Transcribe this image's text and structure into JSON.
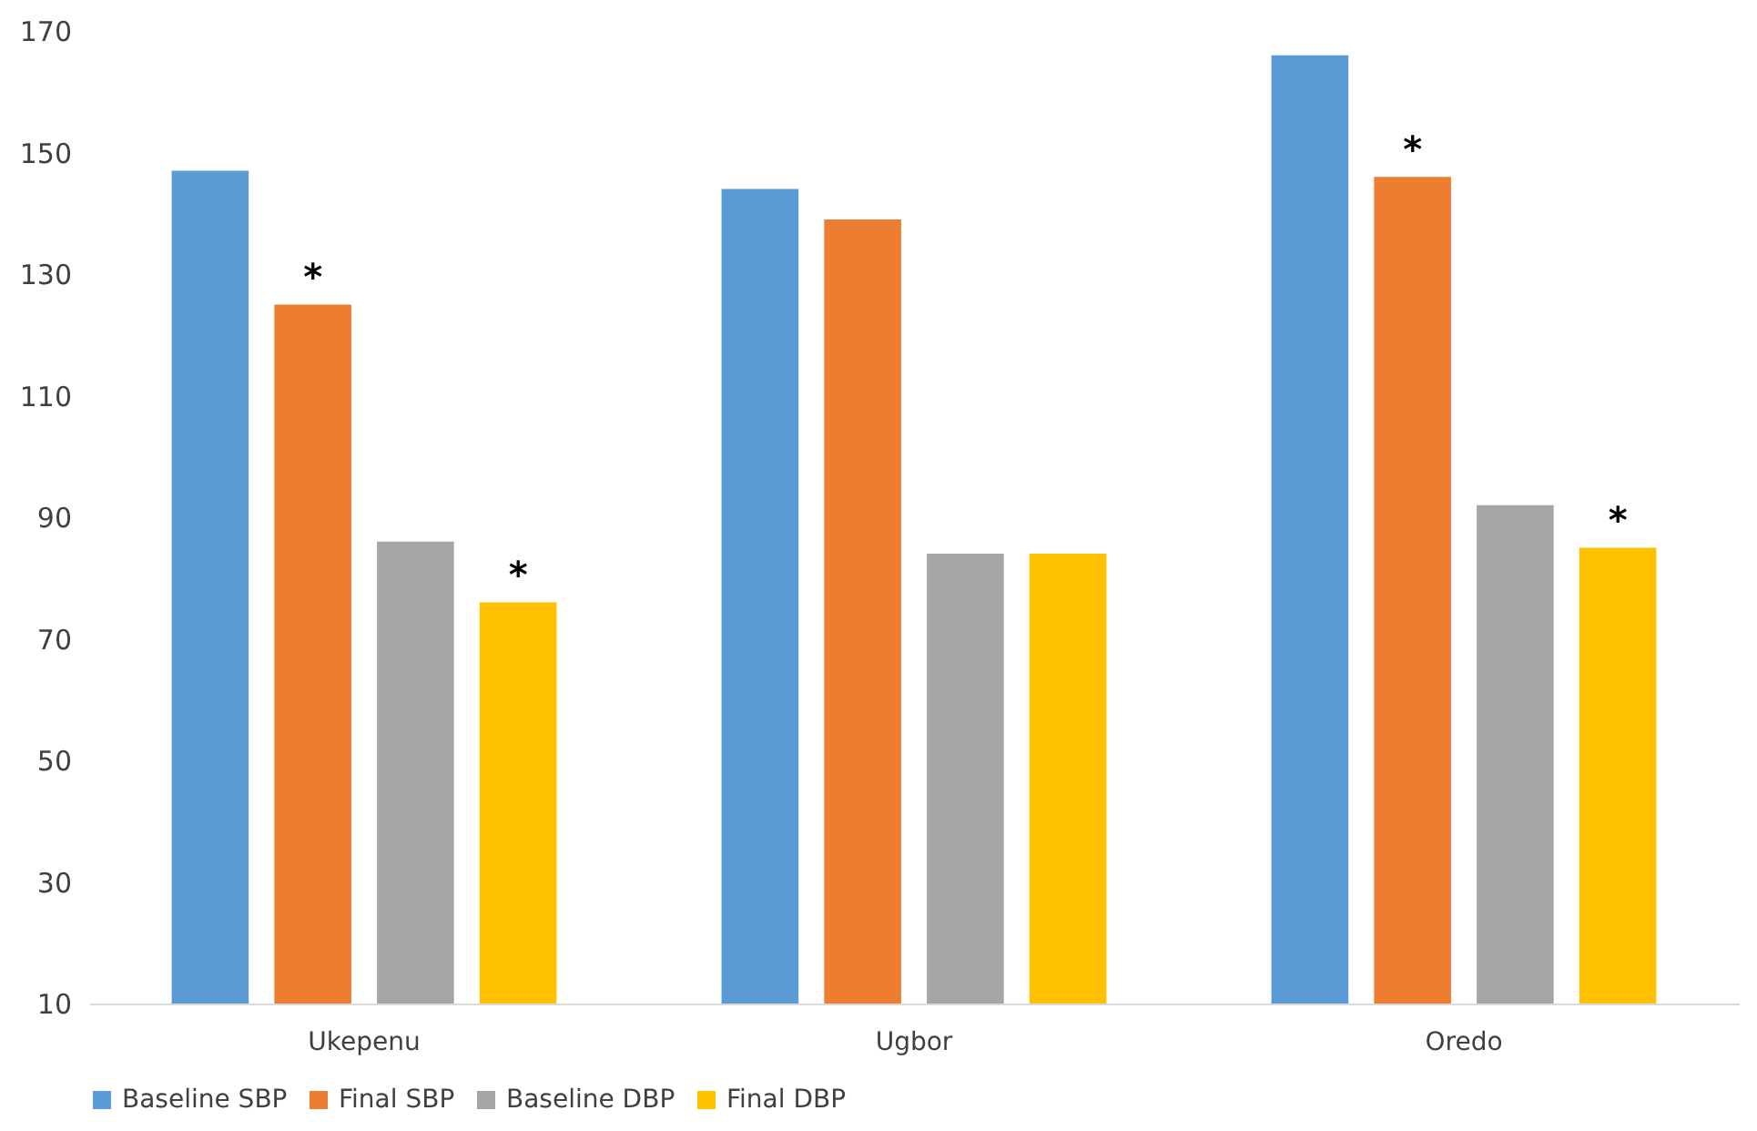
{
  "chart_data": {
    "type": "bar",
    "categories": [
      "Ukepenu",
      "Ugbor",
      "Oredo"
    ],
    "series": [
      {
        "name": "Baseline SBP",
        "color": "#5b9bd5",
        "values": [
          147,
          144,
          166
        ]
      },
      {
        "name": "Final SBP",
        "color": "#ed7d31",
        "values": [
          125,
          139,
          146
        ],
        "value_labels": [
          "*",
          null,
          "*"
        ]
      },
      {
        "name": "Baseline DBP",
        "color": "#a5a5a5",
        "values": [
          86,
          84,
          92
        ]
      },
      {
        "name": "Final DBP",
        "color": "#ffc000",
        "values": [
          76,
          84,
          85
        ],
        "value_labels": [
          "*",
          null,
          "*"
        ]
      }
    ],
    "ylim": [
      10,
      170
    ],
    "yticks": [
      10,
      30,
      50,
      70,
      90,
      110,
      130,
      150,
      170
    ],
    "grid": false,
    "legend": "bottom"
  }
}
